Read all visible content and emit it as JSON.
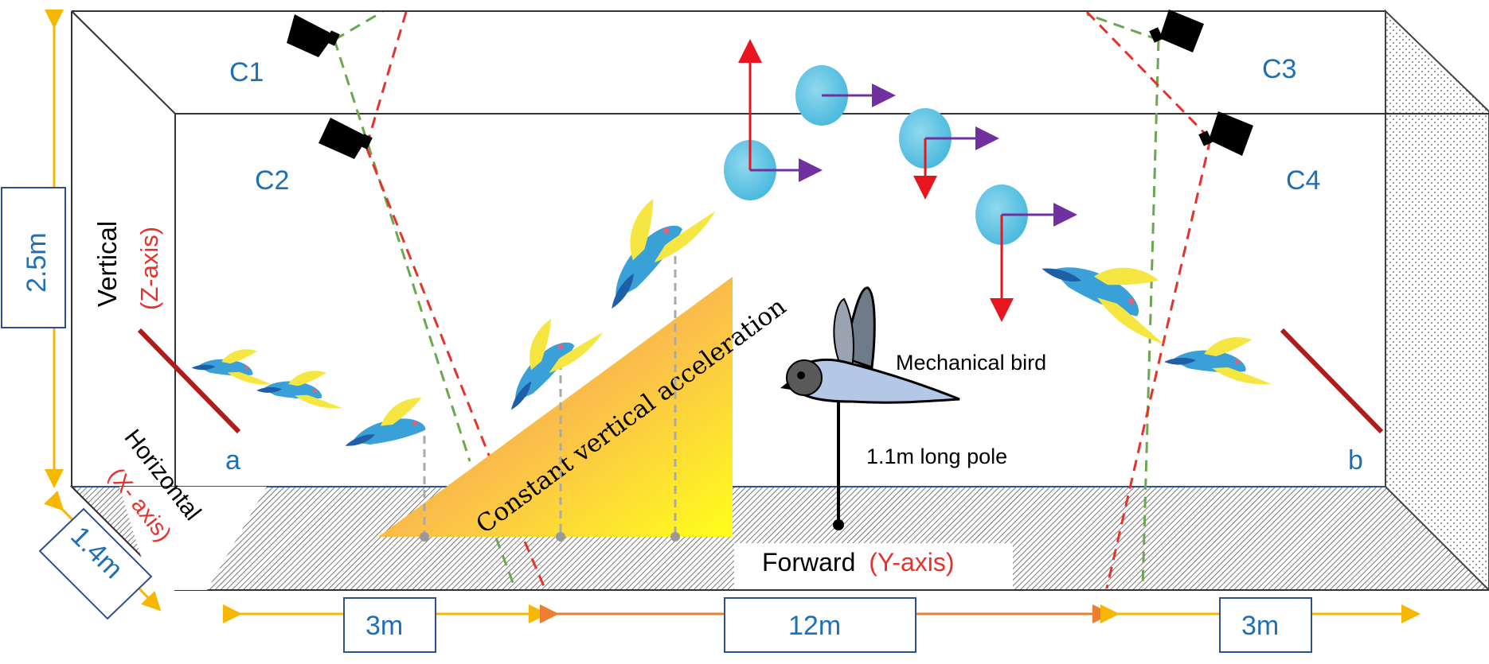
{
  "diagram": {
    "cameras": {
      "c1": "C1",
      "c2": "C2",
      "c3": "C3",
      "c4": "C4"
    },
    "end_labels": {
      "a": "a",
      "b": "b"
    },
    "dimensions": {
      "height": "2.5m",
      "width": "1.4m",
      "length_left": "3m",
      "length_middle": "12m",
      "length_right": "3m"
    },
    "axes": {
      "vertical_word": "Vertical",
      "vertical_axis": "(Z-axis)",
      "horizontal_word": "Horizontal",
      "horizontal_axis": "(X- axis)",
      "forward_word": "Forward",
      "forward_axis": "(Y-axis)"
    },
    "ramp_label": "Constant vertical acceleration",
    "mechanical_bird_label": "Mechanical bird",
    "pole_label": "1.1m long pole",
    "colors": {
      "label_blue": "#1f6fb5",
      "axis_red": "#e8312b",
      "arrow_red": "#e8141e",
      "arrow_purple": "#7030a0",
      "camera_green": "#6aa84f",
      "camera_red": "#e8312b",
      "dimension_orange": "#f5b700",
      "dimension_dark_orange": "#ed7d31",
      "perch_red": "#b01c1c",
      "ball_blue": "#5ec6e4"
    }
  }
}
